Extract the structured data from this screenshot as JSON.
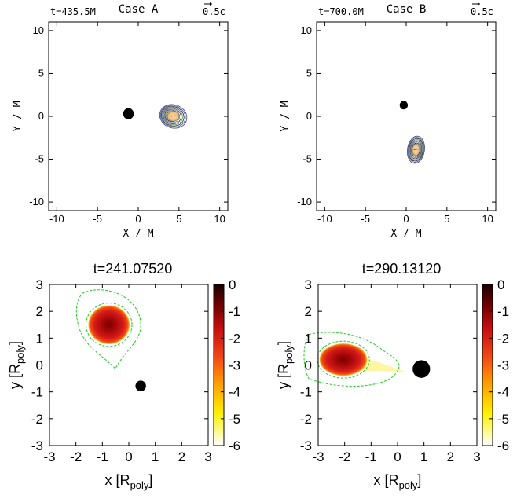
{
  "chart_data": [
    {
      "type": "heatmap",
      "panel": "top-left",
      "time_label": "t=435.5M",
      "title": "Case A",
      "vector_label": "0.5c",
      "xlabel": "X / M",
      "ylabel": "Y / M",
      "xlim": [
        -11,
        11
      ],
      "ylim": [
        -11,
        11
      ],
      "xticks": [
        -10,
        -5,
        0,
        5,
        10
      ],
      "yticks": [
        -10,
        -5,
        0,
        5,
        10
      ],
      "black_hole": {
        "x": -1.2,
        "y": 0.3,
        "r": 0.65
      },
      "star": {
        "x": 4.3,
        "y": 0.0,
        "rx": 1.7,
        "ry": 1.35
      }
    },
    {
      "type": "heatmap",
      "panel": "top-right",
      "time_label": "t=700.0M",
      "title": "Case B",
      "vector_label": "0.5c",
      "xlabel": "X / M",
      "ylabel": "Y / M",
      "xlim": [
        -11,
        11
      ],
      "ylim": [
        -11,
        11
      ],
      "xticks": [
        -10,
        -5,
        0,
        5,
        10
      ],
      "yticks": [
        -10,
        -5,
        0,
        5,
        10
      ],
      "black_hole": {
        "x": -0.3,
        "y": 1.3,
        "r": 0.5
      },
      "star": {
        "x": 1.2,
        "y": -3.9,
        "rx": 1.05,
        "ry": 1.6
      }
    },
    {
      "type": "heatmap",
      "panel": "bottom-left",
      "title": "t=241.07520",
      "xlabel": "x [R",
      "xlabel_sub": "poly",
      "xlabel_end": "]",
      "ylabel": "y [R",
      "ylabel_sub": "poly",
      "ylabel_end": "]",
      "xlim": [
        -3,
        3
      ],
      "ylim": [
        -3,
        3
      ],
      "xticks": [
        -3,
        -2,
        -1,
        0,
        1,
        2,
        3
      ],
      "yticks": [
        -3,
        -2,
        -1,
        0,
        1,
        2,
        3
      ],
      "colorbar": {
        "ticks": [
          0,
          -1,
          -2,
          -3,
          -4,
          -5,
          -6
        ],
        "range": [
          -6,
          0
        ]
      },
      "black_hole": {
        "x": 0.45,
        "y": -0.78,
        "r": 0.2
      },
      "star": {
        "x": -0.75,
        "y": 1.5,
        "rx": 0.78,
        "ry": 0.72
      }
    },
    {
      "type": "heatmap",
      "panel": "bottom-right",
      "title": "t=290.13120",
      "xlabel": "x [R",
      "xlabel_sub": "poly",
      "xlabel_end": "]",
      "ylabel": "y [R",
      "ylabel_sub": "poly",
      "ylabel_end": "]",
      "xlim": [
        -3,
        3
      ],
      "ylim": [
        -3,
        3
      ],
      "xticks": [
        -3,
        -2,
        -1,
        0,
        1,
        2,
        3
      ],
      "yticks": [
        -3,
        -2,
        -1,
        0,
        1,
        2,
        3
      ],
      "colorbar": {
        "ticks": [
          0,
          -1,
          -2,
          -3,
          -4,
          -5,
          -6
        ],
        "range": [
          -6,
          0
        ]
      },
      "black_hole": {
        "x": 0.9,
        "y": -0.15,
        "r": 0.33
      },
      "star": {
        "x": -2.05,
        "y": 0.2,
        "rx": 0.9,
        "ry": 0.6
      }
    }
  ]
}
